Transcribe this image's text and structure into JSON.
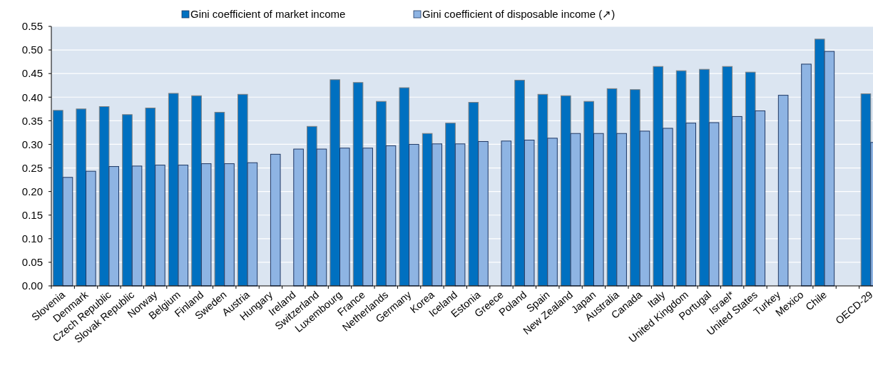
{
  "chart_data": {
    "type": "bar",
    "categories": [
      "Slovenia",
      "Denmark",
      "Czech Republic",
      "Slovak Republic",
      "Norway",
      "Belgium",
      "Finland",
      "Sweden",
      "Austria",
      "Hungary",
      "Ireland",
      "Switzerland",
      "Luxembourg",
      "France",
      "Netherlands",
      "Germany",
      "Korea",
      "Iceland",
      "Estonia",
      "Greece",
      "Poland",
      "Spain",
      "New Zealand",
      "Japan",
      "Australia",
      "Canada",
      "Italy",
      "United Kingdom",
      "Portugal",
      "Israel*",
      "United States",
      "Turkey",
      "Mexico",
      "Chile",
      null,
      "OECD-29"
    ],
    "series": [
      {
        "name": "Gini coefficient of market income",
        "color": "#0070c0",
        "values": [
          0.372,
          0.375,
          0.38,
          0.363,
          0.377,
          0.408,
          0.403,
          0.368,
          0.406,
          null,
          null,
          0.338,
          0.437,
          0.431,
          0.391,
          0.42,
          0.323,
          0.345,
          0.389,
          null,
          0.436,
          0.406,
          0.403,
          0.391,
          0.418,
          0.416,
          0.465,
          0.456,
          0.459,
          0.465,
          0.453,
          null,
          null,
          0.523,
          null,
          0.407
        ]
      },
      {
        "name": "Gini coefficient of disposable income (↗)",
        "color": "#8eb4e3",
        "values": [
          0.23,
          0.243,
          0.253,
          0.254,
          0.256,
          0.256,
          0.259,
          0.259,
          0.261,
          0.279,
          0.29,
          0.29,
          0.292,
          0.292,
          0.297,
          0.3,
          0.301,
          0.301,
          0.306,
          0.307,
          0.309,
          0.313,
          0.323,
          0.323,
          0.323,
          0.328,
          0.334,
          0.345,
          0.346,
          0.359,
          0.371,
          0.404,
          0.47,
          0.497,
          null,
          0.304
        ]
      }
    ],
    "ylim": [
      0,
      0.55
    ],
    "yticks": [
      {
        "value": 0,
        "label": "0.00"
      },
      {
        "value": 0.05,
        "label": "0.05"
      },
      {
        "value": 0.1,
        "label": "0.10"
      },
      {
        "value": 0.15,
        "label": "0.15"
      },
      {
        "value": 0.2,
        "label": "0.20"
      },
      {
        "value": 0.25,
        "label": "0.25"
      },
      {
        "value": 0.3,
        "label": "0.30"
      },
      {
        "value": 0.35,
        "label": "0.35"
      },
      {
        "value": 0.4,
        "label": "0.40"
      },
      {
        "value": 0.45,
        "label": "0.45"
      },
      {
        "value": 0.5,
        "label": "0.50"
      },
      {
        "value": 0.55,
        "label": "0.55"
      }
    ],
    "grid": "y",
    "legend": "top"
  }
}
